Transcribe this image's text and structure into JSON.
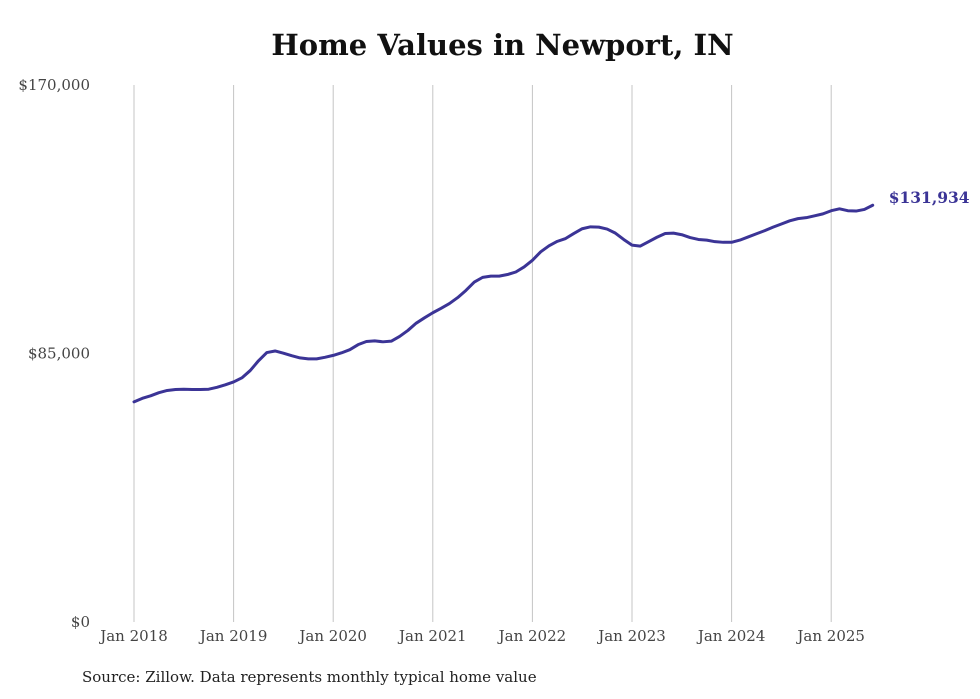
{
  "chart_data": {
    "type": "line",
    "title": "Home Values in Newport, IN",
    "xlabel": "",
    "ylabel": "",
    "x_tick_labels": [
      "Jan 2018",
      "Jan 2019",
      "Jan 2020",
      "Jan 2021",
      "Jan 2022",
      "Jan 2023",
      "Jan 2024",
      "Jan 2025"
    ],
    "y_tick_labels": [
      "$0",
      "$85,000",
      "$170,000"
    ],
    "ylim": [
      0,
      170000
    ],
    "grid": "vertical",
    "line_color": "#3b3496",
    "end_label": "$131,934",
    "series": [
      {
        "x": [
          "2018-01",
          "2018-02",
          "2018-03",
          "2018-04",
          "2018-05",
          "2018-06",
          "2018-07",
          "2018-08",
          "2018-09",
          "2018-10",
          "2018-11",
          "2018-12",
          "2019-01",
          "2019-02",
          "2019-03",
          "2019-04",
          "2019-05",
          "2019-06",
          "2019-07",
          "2019-08",
          "2019-09",
          "2019-10",
          "2019-11",
          "2019-12",
          "2020-01",
          "2020-02",
          "2020-03",
          "2020-04",
          "2020-05",
          "2020-06",
          "2020-07",
          "2020-08",
          "2020-09",
          "2020-10",
          "2020-11",
          "2020-12",
          "2021-01",
          "2021-02",
          "2021-03",
          "2021-04",
          "2021-05",
          "2021-06",
          "2021-07",
          "2021-08",
          "2021-09",
          "2021-10",
          "2021-11",
          "2021-12",
          "2022-01",
          "2022-02",
          "2022-03",
          "2022-04",
          "2022-05",
          "2022-06",
          "2022-07",
          "2022-08",
          "2022-09",
          "2022-10",
          "2022-11",
          "2022-12",
          "2023-01",
          "2023-02",
          "2023-03",
          "2023-04",
          "2023-05",
          "2023-06",
          "2023-07",
          "2023-08",
          "2023-09",
          "2023-10",
          "2023-11",
          "2023-12",
          "2024-01",
          "2024-02",
          "2024-03",
          "2024-04",
          "2024-05",
          "2024-06",
          "2024-07",
          "2024-08",
          "2024-09",
          "2024-10",
          "2024-11",
          "2024-12",
          "2025-01",
          "2025-02",
          "2025-03",
          "2025-04",
          "2025-05",
          "2025-06"
        ],
        "y": [
          69700,
          70800,
          71600,
          72600,
          73300,
          73600,
          73700,
          73600,
          73600,
          73700,
          74300,
          75100,
          76000,
          77300,
          79600,
          82700,
          85300,
          85800,
          85100,
          84300,
          83600,
          83300,
          83300,
          83800,
          84400,
          85200,
          86200,
          87800,
          88800,
          89000,
          88700,
          88900,
          90400,
          92300,
          94600,
          96300,
          97900,
          99300,
          100800,
          102700,
          105000,
          107600,
          109100,
          109500,
          109500,
          110000,
          110800,
          112400,
          114500,
          117200,
          119100,
          120500,
          121400,
          123000,
          124500,
          125100,
          125000,
          124400,
          123100,
          121100,
          119300,
          119000,
          120400,
          121800,
          123000,
          123100,
          122600,
          121700,
          121100,
          120900,
          120400,
          120200,
          120200,
          120900,
          121900,
          122900,
          123900,
          125000,
          126000,
          127000,
          127700,
          128000,
          128600,
          129200,
          130200,
          130800,
          130200,
          130100,
          130600,
          131934
        ]
      }
    ]
  },
  "source_note": "Source: Zillow. Data represents monthly typical home value"
}
